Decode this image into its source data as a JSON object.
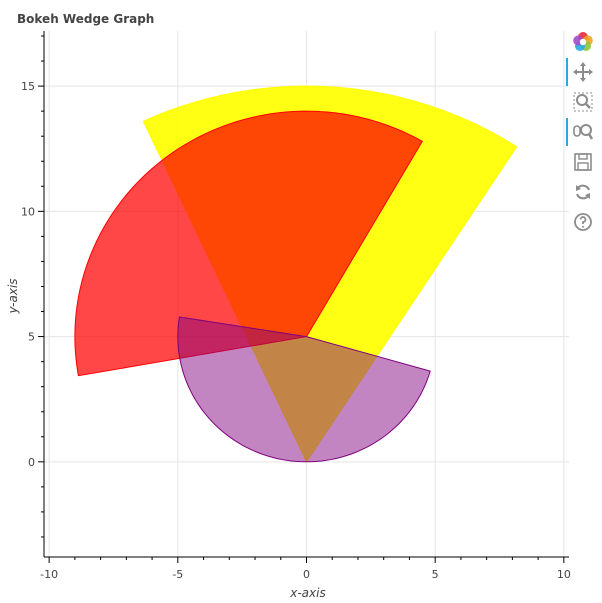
{
  "chart_data": {
    "type": "wedge",
    "title": "Bokeh Wedge Graph",
    "xlabel": "x-axis",
    "ylabel": "y-axis",
    "xlim": [
      -10.2,
      10.2
    ],
    "ylim": [
      -3.8,
      17.2
    ],
    "x_ticks": [
      -10,
      -5,
      0,
      5,
      10
    ],
    "y_ticks": [
      0,
      5,
      10,
      15
    ],
    "grid": true,
    "wedges": [
      {
        "x": 0,
        "y": 0,
        "radius": 15,
        "start_angle_deg": 57,
        "end_angle_deg": 115,
        "fill": "#ffff00",
        "line": "#ffff00",
        "fill_alpha": 0.92
      },
      {
        "x": 0,
        "y": 5,
        "radius": 9,
        "start_angle_deg": 60,
        "end_angle_deg": 190,
        "fill": "#ff0000",
        "line": "#ff0000",
        "fill_alpha": 0.72
      },
      {
        "x": 0,
        "y": 5,
        "radius": 5,
        "start_angle_deg": 171,
        "end_angle_deg": 344,
        "fill": "#800080",
        "line": "#800080",
        "fill_alpha": 0.48
      }
    ]
  },
  "toolbar": {
    "tools": [
      {
        "name": "bokeh-logo",
        "active": false
      },
      {
        "name": "pan-tool",
        "active": true
      },
      {
        "name": "box-zoom-tool",
        "active": false
      },
      {
        "name": "wheel-zoom-tool",
        "active": true
      },
      {
        "name": "save-tool",
        "active": false
      },
      {
        "name": "reset-tool",
        "active": false
      },
      {
        "name": "help-tool",
        "active": false
      }
    ]
  }
}
